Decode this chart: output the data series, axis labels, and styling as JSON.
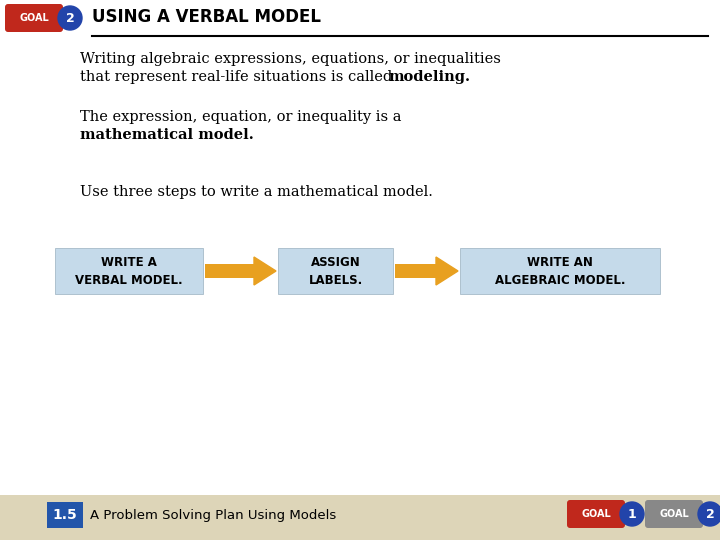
{
  "title": "USING A VERBAL MODEL",
  "title_fontsize": 12,
  "bg_color": "#ffffff",
  "footer_bg": "#ddd5b8",
  "para1_line1": "Writing algebraic expressions, equations, or inequalities",
  "para1_line2": "that represent real-life situations is called ",
  "para1_bold": "modeling.",
  "para2_line1": "The expression, equation, or inequality is a",
  "para2_bold": "mathematical model.",
  "para3": "Use three steps to write a mathematical model.",
  "box1_line1": "WRITE A",
  "box1_line2": "VERBAL MODEL.",
  "box2_line1": "ASSIGN",
  "box2_line2": "LABELS.",
  "box3_line1": "WRITE AN",
  "box3_line2": "ALGEBRAIC MODEL.",
  "box_bg": "#c5daea",
  "arrow_color": "#e8a020",
  "goal_red": "#c0281c",
  "goal_blue": "#2244aa",
  "footer_number_bg": "#2255aa",
  "footer_text": "A Problem Solving Plan Using Models",
  "footer_num": "1.5",
  "goal2_gray": "#888888"
}
